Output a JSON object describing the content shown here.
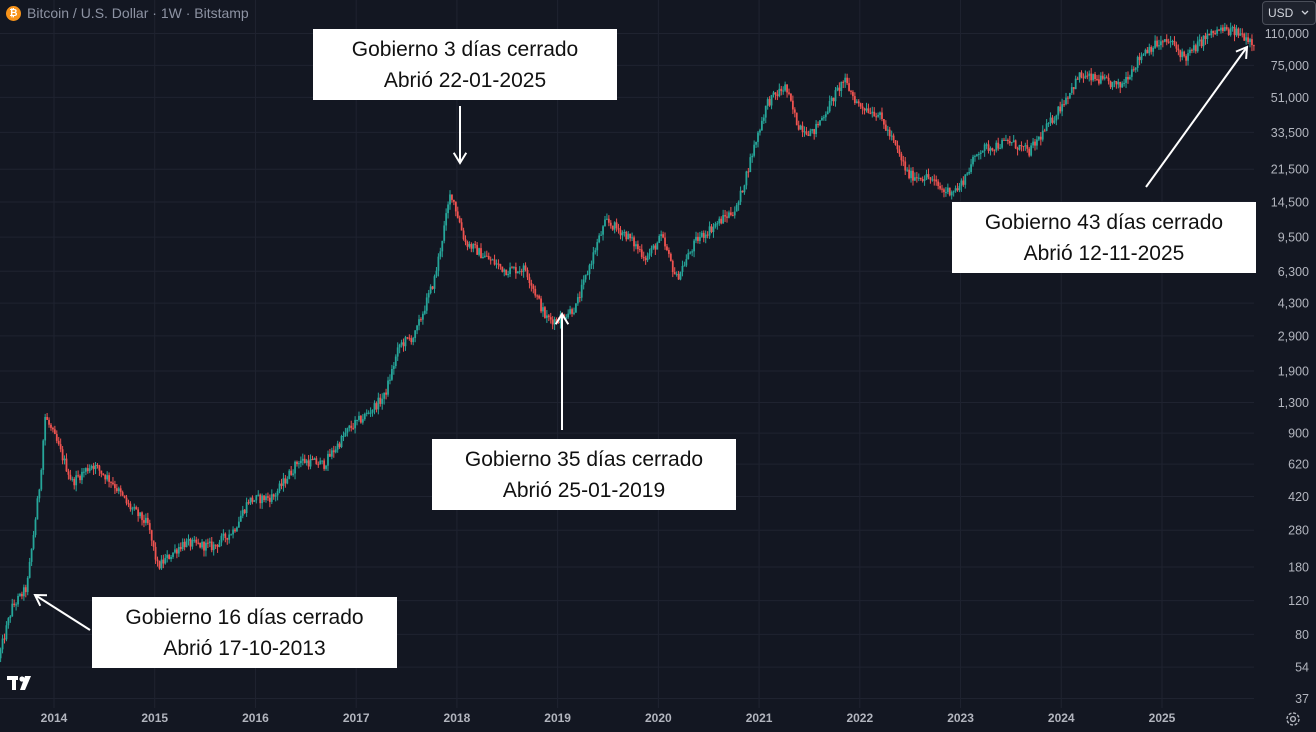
{
  "header": {
    "title": "Bitcoin / U.S. Dollar · 1W · Bitstamp",
    "icon": "bitcoin-icon"
  },
  "currency": {
    "label": "USD",
    "icon": "chevron-down-icon"
  },
  "footer": {
    "logo": "tradingview-logo-icon",
    "settings_icon": "gear-icon"
  },
  "annotations": [
    {
      "line1": "Gobierno 16 días cerrado",
      "line2": "Abrió 17-10-2013"
    },
    {
      "line1": "Gobierno 3 días cerrado",
      "line2": "Abrió 22-01-2025"
    },
    {
      "line1": "Gobierno 35 días cerrado",
      "line2": "Abrió 25-01-2019"
    },
    {
      "line1": "Gobierno 43 días cerrado",
      "line2": "Abrió 12-11-2025"
    }
  ],
  "colors": {
    "background": "#131722",
    "up": "#26a69a",
    "down": "#ef5350",
    "grid": "#1f2330",
    "axis_text": "#b2b5be"
  },
  "chart_data": {
    "type": "candlestick",
    "title": "Bitcoin / U.S. Dollar · 1W · Bitstamp",
    "y_scale": "log",
    "ylim": [
      30,
      125000
    ],
    "y_ticks": [
      {
        "value": 110000,
        "label": "110,000"
      },
      {
        "value": 75000,
        "label": "75,000"
      },
      {
        "value": 51000,
        "label": "51,000"
      },
      {
        "value": 33500,
        "label": "33,500"
      },
      {
        "value": 21500,
        "label": "21,500"
      },
      {
        "value": 14500,
        "label": "14,500"
      },
      {
        "value": 9500,
        "label": "9,500"
      },
      {
        "value": 6300,
        "label": "6,300"
      },
      {
        "value": 4300,
        "label": "4,300"
      },
      {
        "value": 2900,
        "label": "2,900"
      },
      {
        "value": 1900,
        "label": "1,900"
      },
      {
        "value": 1300,
        "label": "1,300"
      },
      {
        "value": 900,
        "label": "900"
      },
      {
        "value": 620,
        "label": "620"
      },
      {
        "value": 420,
        "label": "420"
      },
      {
        "value": 280,
        "label": "280"
      },
      {
        "value": 180,
        "label": "180"
      },
      {
        "value": 120,
        "label": "120"
      },
      {
        "value": 80,
        "label": "80"
      },
      {
        "value": 54,
        "label": "54"
      },
      {
        "value": 37,
        "label": "37"
      }
    ],
    "x_ticks": [
      "2014",
      "2015",
      "2016",
      "2017",
      "2018",
      "2019",
      "2020",
      "2021",
      "2022",
      "2023",
      "2024",
      "2025"
    ],
    "xlim": [
      2013.47,
      2025.97
    ],
    "price_path": [
      [
        2013.47,
        60
      ],
      [
        2013.6,
        110
      ],
      [
        2013.75,
        140
      ],
      [
        2013.88,
        500
      ],
      [
        2013.93,
        1100
      ],
      [
        2014.05,
        800
      ],
      [
        2014.2,
        500
      ],
      [
        2014.4,
        620
      ],
      [
        2014.6,
        500
      ],
      [
        2014.75,
        380
      ],
      [
        2014.95,
        300
      ],
      [
        2015.05,
        180
      ],
      [
        2015.3,
        240
      ],
      [
        2015.6,
        230
      ],
      [
        2015.8,
        280
      ],
      [
        2015.95,
        400
      ],
      [
        2016.2,
        420
      ],
      [
        2016.45,
        650
      ],
      [
        2016.7,
        620
      ],
      [
        2016.95,
        950
      ],
      [
        2017.1,
        1100
      ],
      [
        2017.3,
        1400
      ],
      [
        2017.45,
        2600
      ],
      [
        2017.6,
        2900
      ],
      [
        2017.8,
        5800
      ],
      [
        2017.96,
        16500
      ],
      [
        2018.1,
        9000
      ],
      [
        2018.3,
        7500
      ],
      [
        2018.5,
        6400
      ],
      [
        2018.7,
        6500
      ],
      [
        2018.9,
        3600
      ],
      [
        2019.0,
        3500
      ],
      [
        2019.2,
        4100
      ],
      [
        2019.4,
        8500
      ],
      [
        2019.5,
        11500
      ],
      [
        2019.7,
        9800
      ],
      [
        2019.9,
        7400
      ],
      [
        2020.05,
        9500
      ],
      [
        2020.2,
        5800
      ],
      [
        2020.4,
        9200
      ],
      [
        2020.6,
        11200
      ],
      [
        2020.8,
        13500
      ],
      [
        2020.95,
        26000
      ],
      [
        2021.1,
        48000
      ],
      [
        2021.28,
        58000
      ],
      [
        2021.4,
        37000
      ],
      [
        2021.55,
        33000
      ],
      [
        2021.7,
        45000
      ],
      [
        2021.86,
        63000
      ],
      [
        2022.0,
        47000
      ],
      [
        2022.2,
        42000
      ],
      [
        2022.35,
        30000
      ],
      [
        2022.5,
        20000
      ],
      [
        2022.7,
        19500
      ],
      [
        2022.85,
        16500
      ],
      [
        2023.0,
        17000
      ],
      [
        2023.2,
        27000
      ],
      [
        2023.5,
        30000
      ],
      [
        2023.7,
        26500
      ],
      [
        2023.9,
        37000
      ],
      [
        2024.2,
        66000
      ],
      [
        2024.4,
        63000
      ],
      [
        2024.6,
        58000
      ],
      [
        2024.85,
        90000
      ],
      [
        2024.95,
        96000
      ],
      [
        2025.1,
        100000
      ],
      [
        2025.25,
        82000
      ],
      [
        2025.45,
        105000
      ],
      [
        2025.6,
        115000
      ],
      [
        2025.75,
        112000
      ],
      [
        2025.85,
        106000
      ],
      [
        2025.92,
        100000
      ]
    ]
  }
}
